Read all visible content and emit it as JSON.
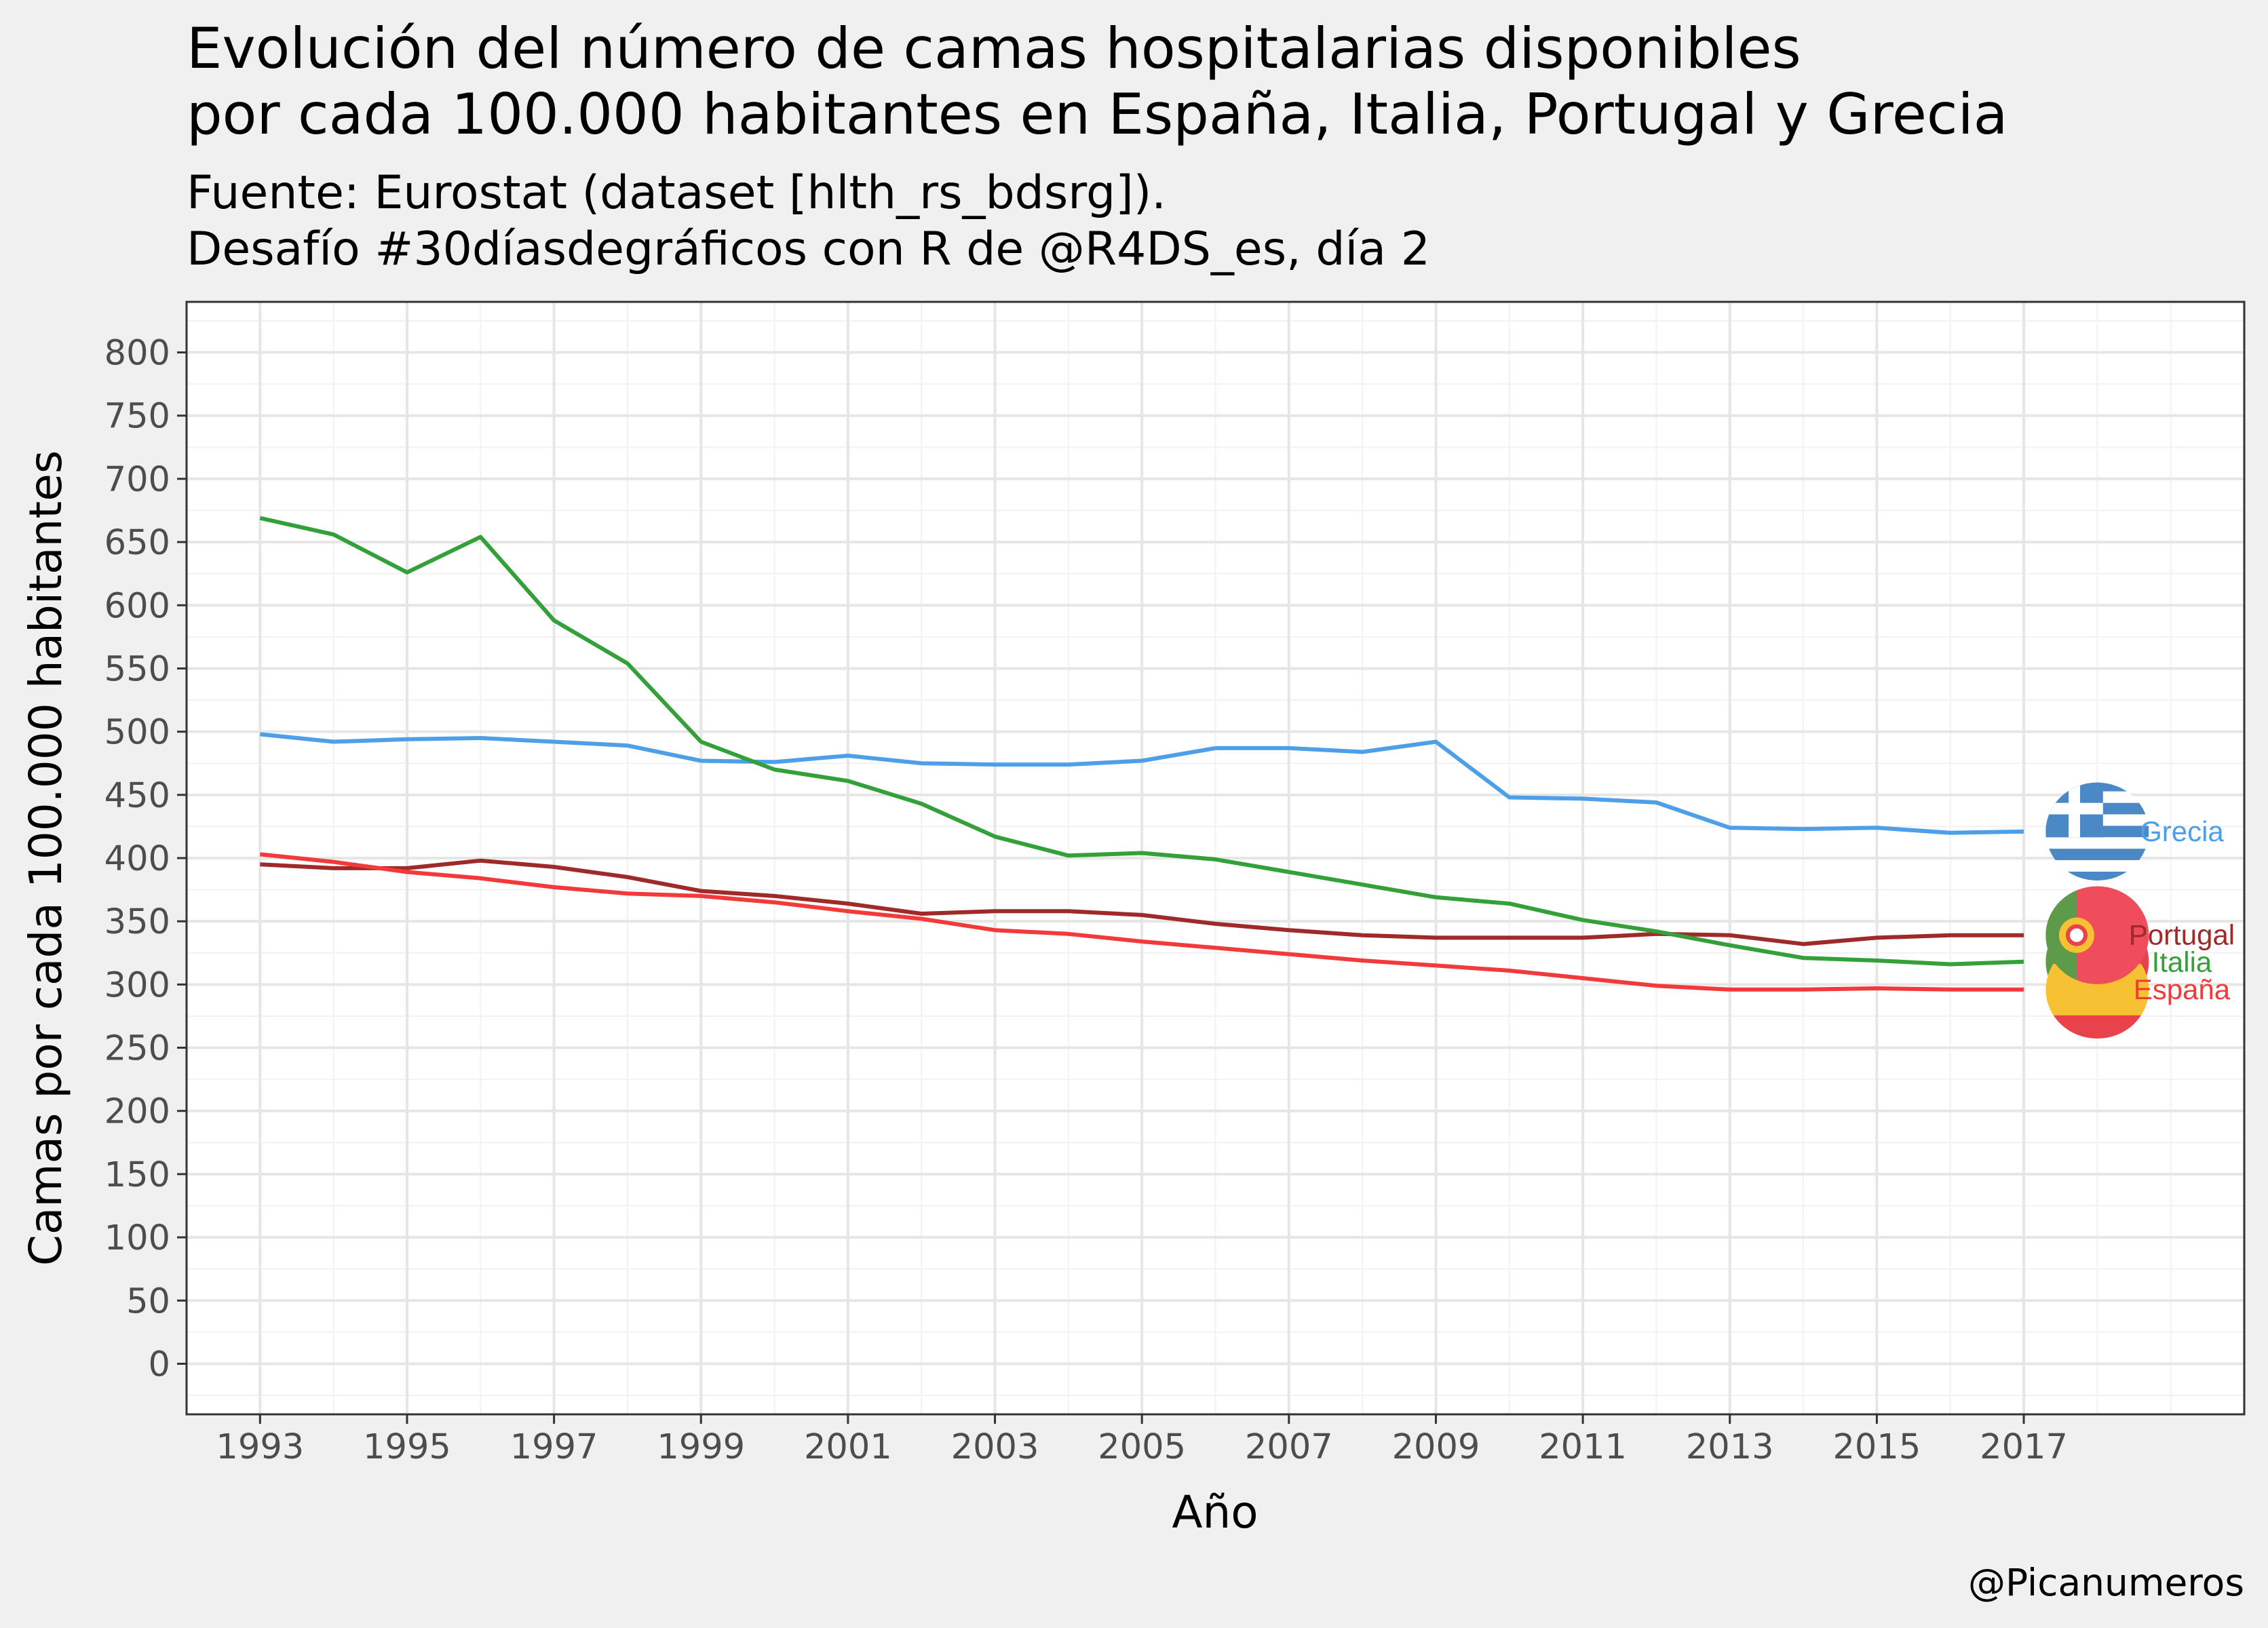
{
  "title_lines": [
    "Evolución del número de camas hospitalarias disponibles",
    "por cada 100.000 habitantes en España, Italia, Portugal y Grecia"
  ],
  "subtitle_lines": [
    "Fuente: Eurostat (dataset [hlth_rs_bdsrg]).",
    "Desafío #30díasdegráficos con R de @R4DS_es, día 2"
  ],
  "caption": "@Picanumeros",
  "chart_data": {
    "type": "line",
    "xlabel": "Año",
    "ylabel": "Camas por cada 100.000 habitantes",
    "xlim": [
      1992,
      2020
    ],
    "ylim": [
      -40,
      840
    ],
    "x_ticks": [
      1993,
      1995,
      1997,
      1999,
      2001,
      2003,
      2005,
      2007,
      2009,
      2011,
      2013,
      2015,
      2017
    ],
    "y_ticks": [
      0,
      50,
      100,
      150,
      200,
      250,
      300,
      350,
      400,
      450,
      500,
      550,
      600,
      650,
      700,
      750,
      800
    ],
    "grid": true,
    "legend": "none (direct labels with flags at line ends)",
    "x": [
      1993,
      1994,
      1995,
      1996,
      1997,
      1998,
      1999,
      2000,
      2001,
      2002,
      2003,
      2004,
      2005,
      2006,
      2007,
      2008,
      2009,
      2010,
      2011,
      2012,
      2013,
      2014,
      2015,
      2016,
      2017
    ],
    "series": [
      {
        "name": "Grecia",
        "color": "#4d9fe8",
        "flag": "greece-flag",
        "values": [
          498,
          492,
          494,
          495,
          492,
          489,
          477,
          476,
          481,
          475,
          474,
          474,
          477,
          487,
          487,
          484,
          492,
          448,
          447,
          444,
          424,
          423,
          424,
          420,
          421
        ]
      },
      {
        "name": "Portugal",
        "color": "#9e2a2a",
        "flag": "portugal-flag",
        "values": [
          395,
          392,
          392,
          398,
          393,
          385,
          374,
          370,
          364,
          356,
          358,
          358,
          355,
          348,
          343,
          339,
          337,
          337,
          337,
          340,
          339,
          332,
          337,
          339,
          339
        ]
      },
      {
        "name": "Italia",
        "color": "#34a03a",
        "flag": "italy-flag",
        "values": [
          669,
          656,
          626,
          654,
          588,
          554,
          492,
          470,
          461,
          443,
          417,
          402,
          404,
          399,
          389,
          379,
          369,
          364,
          351,
          342,
          331,
          321,
          319,
          316,
          318
        ]
      },
      {
        "name": "España",
        "color": "#f23a3a",
        "flag": "spain-flag",
        "values": [
          403,
          397,
          389,
          384,
          377,
          372,
          370,
          365,
          358,
          352,
          343,
          340,
          334,
          329,
          324,
          319,
          315,
          311,
          305,
          299,
          296,
          296,
          297,
          296,
          296
        ]
      }
    ]
  }
}
